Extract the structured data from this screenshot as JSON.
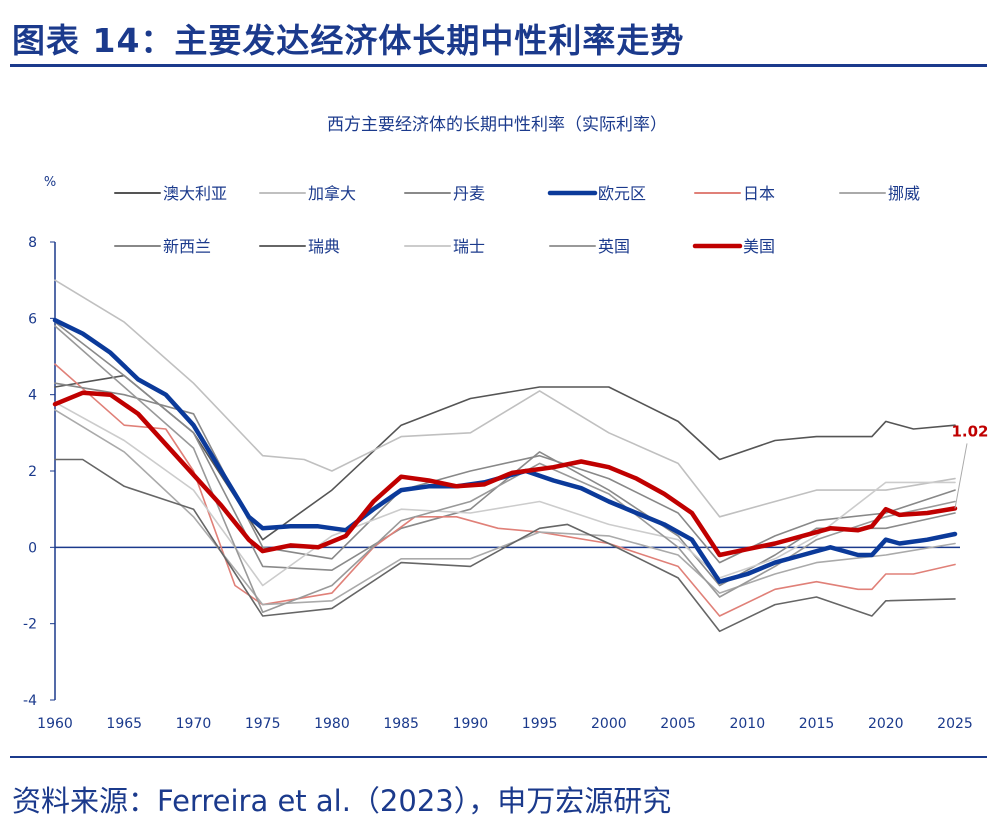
{
  "header": {
    "title": "图表 14：主要发达经济体长期中性利率走势"
  },
  "footer": {
    "source": "资料来源：Ferreira et al.（2023），申万宏源研究"
  },
  "chart_data": {
    "type": "line",
    "title": "西方主要经济体的长期中性利率（实际利率）",
    "ylabel": "%",
    "xlim": [
      1960,
      2025
    ],
    "ylim": [
      -4,
      8
    ],
    "yticks": [
      -4,
      -2,
      0,
      2,
      4,
      6,
      8
    ],
    "xticks": [
      1960,
      1965,
      1970,
      1975,
      1980,
      1985,
      1990,
      1995,
      2000,
      2005,
      2010,
      2015,
      2020,
      2025
    ],
    "legend_position": "top",
    "annotation": {
      "text": "1.02",
      "series": "美国",
      "x": 2025,
      "y": 1.02,
      "color": "#c00000"
    },
    "series": [
      {
        "name": "澳大利亚",
        "color": "#555555",
        "width": 1.6,
        "x": [
          1960,
          1965,
          1970,
          1975,
          1980,
          1985,
          1990,
          1995,
          2000,
          2005,
          2008,
          2012,
          2015,
          2019,
          2020,
          2022,
          2025
        ],
        "y": [
          4.2,
          4.5,
          3.0,
          0.2,
          1.5,
          3.2,
          3.9,
          4.2,
          4.2,
          3.3,
          2.3,
          2.8,
          2.9,
          2.9,
          3.3,
          3.1,
          3.2
        ]
      },
      {
        "name": "加拿大",
        "color": "#c0c0c0",
        "width": 1.6,
        "x": [
          1960,
          1965,
          1970,
          1975,
          1978,
          1980,
          1985,
          1990,
          1995,
          2000,
          2005,
          2008,
          2012,
          2015,
          2020,
          2025
        ],
        "y": [
          7.0,
          5.9,
          4.3,
          2.4,
          2.3,
          2.0,
          2.9,
          3.0,
          4.1,
          3.0,
          2.2,
          0.8,
          1.2,
          1.5,
          1.5,
          1.8
        ]
      },
      {
        "name": "丹麦",
        "color": "#8a8a8a",
        "width": 1.6,
        "x": [
          1960,
          1965,
          1970,
          1975,
          1980,
          1985,
          1990,
          1995,
          2000,
          2005,
          2008,
          2012,
          2015,
          2020,
          2025
        ],
        "y": [
          5.9,
          4.5,
          3.0,
          -0.5,
          -0.6,
          0.5,
          1.0,
          2.5,
          1.5,
          0.3,
          -1.0,
          -0.2,
          0.5,
          0.5,
          0.9
        ]
      },
      {
        "name": "欧元区",
        "color": "#0b3a9a",
        "width": 4.5,
        "x": [
          1960,
          1962,
          1964,
          1966,
          1968,
          1970,
          1972,
          1974,
          1975,
          1977,
          1979,
          1981,
          1983,
          1985,
          1987,
          1989,
          1991,
          1994,
          1996,
          1998,
          2000,
          2002,
          2004,
          2006,
          2008,
          2010,
          2012,
          2014,
          2016,
          2018,
          2019,
          2020,
          2021,
          2023,
          2025
        ],
        "y": [
          5.95,
          5.6,
          5.1,
          4.4,
          4.0,
          3.2,
          2.0,
          0.8,
          0.5,
          0.55,
          0.55,
          0.45,
          1.0,
          1.5,
          1.6,
          1.6,
          1.7,
          2.0,
          1.75,
          1.55,
          1.2,
          0.9,
          0.6,
          0.2,
          -0.9,
          -0.7,
          -0.4,
          -0.2,
          0.0,
          -0.2,
          -0.2,
          0.2,
          0.1,
          0.2,
          0.35
        ]
      },
      {
        "name": "日本",
        "color": "#e08078",
        "width": 1.6,
        "x": [
          1960,
          1965,
          1968,
          1970,
          1973,
          1975,
          1980,
          1983,
          1986,
          1989,
          1992,
          1995,
          2000,
          2005,
          2008,
          2012,
          2015,
          2018,
          2019,
          2020,
          2022,
          2025
        ],
        "y": [
          4.8,
          3.2,
          3.1,
          2.0,
          -1.0,
          -1.5,
          -1.2,
          0.0,
          0.8,
          0.8,
          0.5,
          0.4,
          0.1,
          -0.5,
          -1.8,
          -1.1,
          -0.9,
          -1.1,
          -1.1,
          -0.7,
          -0.7,
          -0.45
        ]
      },
      {
        "name": "挪威",
        "color": "#aaaaaa",
        "width": 1.6,
        "x": [
          1960,
          1965,
          1970,
          1975,
          1980,
          1985,
          1990,
          1995,
          2000,
          2005,
          2008,
          2012,
          2015,
          2020,
          2025
        ],
        "y": [
          3.6,
          2.5,
          0.8,
          -1.5,
          -1.4,
          -0.3,
          -0.3,
          0.4,
          0.3,
          -0.2,
          -1.2,
          -0.7,
          -0.4,
          -0.2,
          0.1
        ]
      },
      {
        "name": "新西兰",
        "color": "#888888",
        "width": 1.6,
        "x": [
          1960,
          1965,
          1970,
          1975,
          1980,
          1985,
          1990,
          1995,
          2000,
          2005,
          2008,
          2012,
          2015,
          2020,
          2025
        ],
        "y": [
          4.3,
          4.0,
          3.5,
          0.0,
          -0.3,
          1.5,
          2.0,
          2.4,
          1.8,
          0.9,
          -0.4,
          0.3,
          0.7,
          0.9,
          1.5
        ]
      },
      {
        "name": "瑞典",
        "color": "#666666",
        "width": 1.6,
        "x": [
          1960,
          1962,
          1965,
          1970,
          1975,
          1980,
          1985,
          1990,
          1995,
          1997,
          2000,
          2005,
          2008,
          2012,
          2015,
          2019,
          2020,
          2025
        ],
        "y": [
          2.3,
          2.3,
          1.6,
          1.0,
          -1.8,
          -1.6,
          -0.4,
          -0.5,
          0.5,
          0.6,
          0.1,
          -0.8,
          -2.2,
          -1.5,
          -1.3,
          -1.8,
          -1.4,
          -1.35
        ]
      },
      {
        "name": "瑞士",
        "color": "#cccccc",
        "width": 1.6,
        "x": [
          1960,
          1965,
          1970,
          1975,
          1980,
          1985,
          1990,
          1995,
          2000,
          2005,
          2008,
          2012,
          2015,
          2020,
          2025
        ],
        "y": [
          3.8,
          2.8,
          1.5,
          -1.0,
          0.3,
          1.0,
          0.9,
          1.2,
          0.6,
          0.2,
          -0.8,
          -0.3,
          0.3,
          1.7,
          1.7
        ]
      },
      {
        "name": "英国",
        "color": "#999999",
        "width": 1.6,
        "x": [
          1960,
          1965,
          1970,
          1975,
          1980,
          1985,
          1990,
          1995,
          2000,
          2005,
          2008,
          2012,
          2015,
          2020,
          2025
        ],
        "y": [
          5.8,
          4.2,
          2.6,
          -1.7,
          -1.0,
          0.7,
          1.2,
          2.2,
          1.4,
          0.0,
          -1.3,
          -0.5,
          0.2,
          0.8,
          1.2
        ]
      },
      {
        "name": "美国",
        "color": "#c00000",
        "width": 4.5,
        "x": [
          1960,
          1962,
          1964,
          1966,
          1968,
          1970,
          1972,
          1974,
          1975,
          1977,
          1979,
          1981,
          1983,
          1985,
          1987,
          1989,
          1991,
          1993,
          1995,
          1996,
          1998,
          2000,
          2002,
          2004,
          2006,
          2008,
          2010,
          2012,
          2014,
          2016,
          2018,
          2019,
          2020,
          2021,
          2023,
          2025
        ],
        "y": [
          3.75,
          4.05,
          4.0,
          3.5,
          2.7,
          1.9,
          1.1,
          0.2,
          -0.1,
          0.05,
          0.0,
          0.3,
          1.2,
          1.85,
          1.75,
          1.6,
          1.65,
          1.95,
          2.05,
          2.1,
          2.25,
          2.1,
          1.8,
          1.4,
          0.9,
          -0.2,
          -0.05,
          0.1,
          0.3,
          0.5,
          0.45,
          0.55,
          1.0,
          0.85,
          0.9,
          1.02
        ]
      }
    ]
  }
}
